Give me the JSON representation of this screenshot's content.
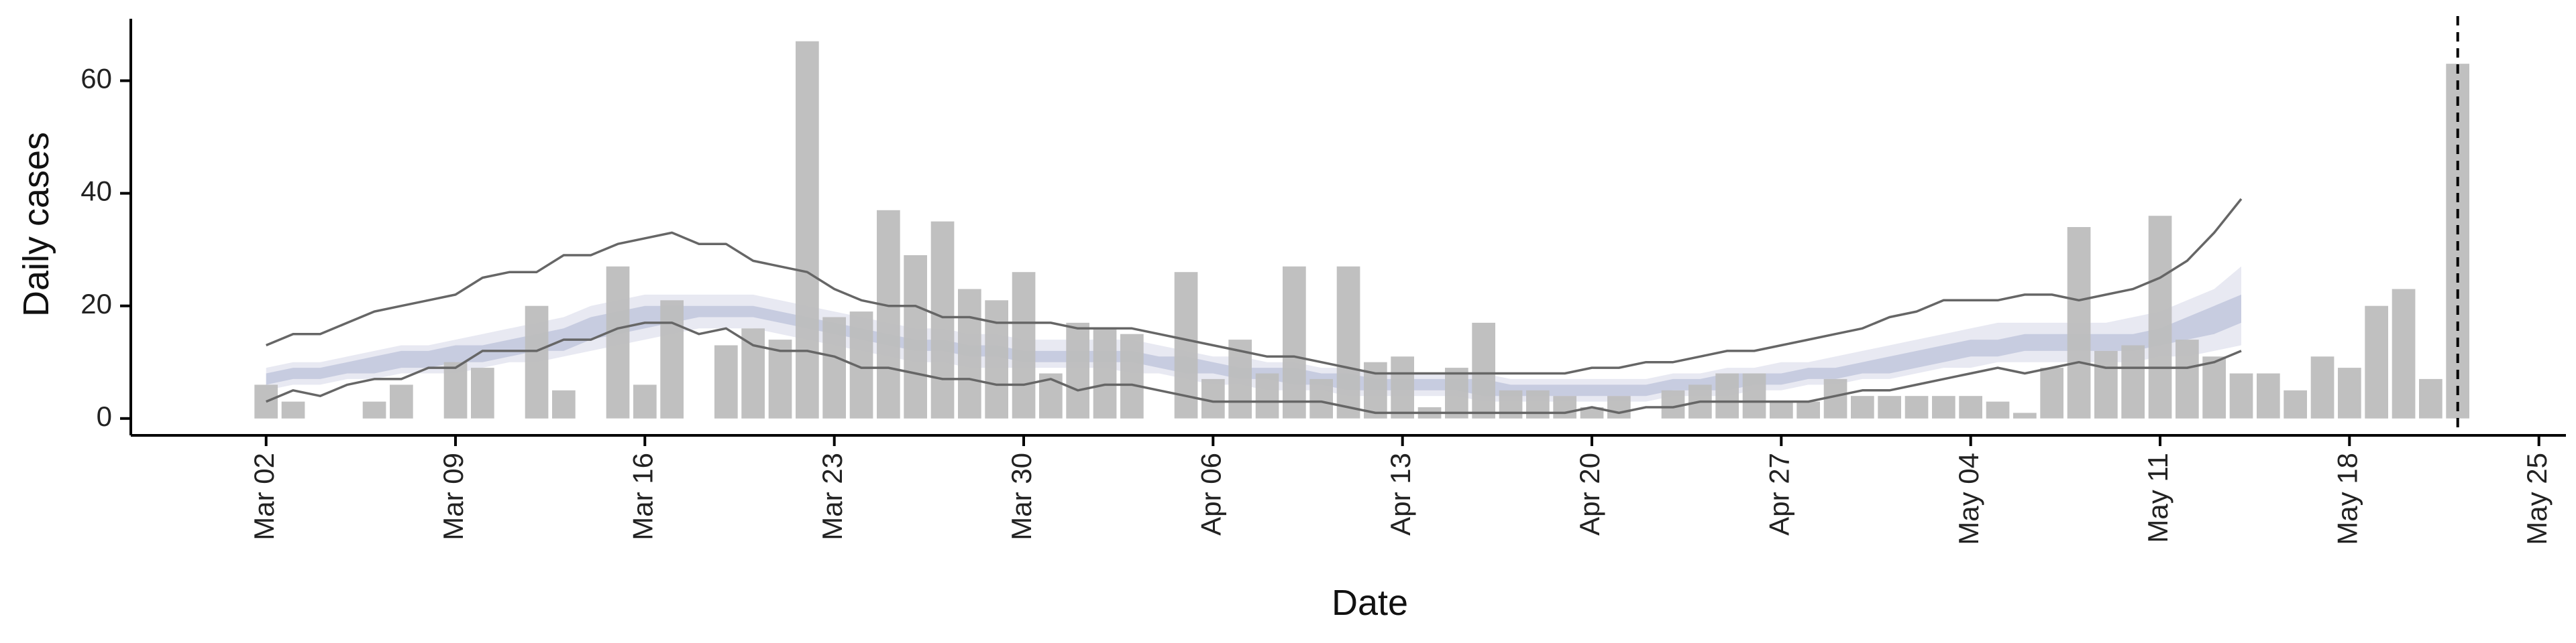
{
  "chart_data": {
    "type": "bar",
    "xlabel": "Date",
    "ylabel": "Daily cases",
    "x_start": "2020-03-02",
    "x_end": "2020-05-22",
    "xlim": [
      "2020-02-26",
      "2020-05-26"
    ],
    "ylim": [
      -3,
      71
    ],
    "y_ticks": [
      0,
      20,
      40,
      60
    ],
    "x_ticks": [
      {
        "date": "2020-03-02",
        "label": "Mar 02"
      },
      {
        "date": "2020-03-09",
        "label": "Mar 09"
      },
      {
        "date": "2020-03-16",
        "label": "Mar 16"
      },
      {
        "date": "2020-03-23",
        "label": "Mar 23"
      },
      {
        "date": "2020-03-30",
        "label": "Mar 30"
      },
      {
        "date": "2020-04-06",
        "label": "Apr 06"
      },
      {
        "date": "2020-04-13",
        "label": "Apr 13"
      },
      {
        "date": "2020-04-20",
        "label": "Apr 20"
      },
      {
        "date": "2020-04-27",
        "label": "Apr 27"
      },
      {
        "date": "2020-05-04",
        "label": "May 04"
      },
      {
        "date": "2020-05-11",
        "label": "May 11"
      },
      {
        "date": "2020-05-18",
        "label": "May 18"
      },
      {
        "date": "2020-05-25",
        "label": "May 25"
      }
    ],
    "bars": {
      "color": "#bdbdbd",
      "values": [
        6,
        3,
        0,
        0,
        3,
        6,
        0,
        10,
        9,
        0,
        20,
        5,
        0,
        27,
        6,
        21,
        0,
        13,
        16,
        14,
        67,
        18,
        19,
        37,
        29,
        35,
        23,
        21,
        26,
        8,
        17,
        16,
        15,
        0,
        26,
        7,
        14,
        8,
        27,
        7,
        27,
        10,
        11,
        2,
        9,
        17,
        5,
        5,
        4,
        2,
        4,
        0,
        5,
        6,
        8,
        8,
        3,
        3,
        7,
        4,
        4,
        4,
        4,
        4,
        3,
        1,
        9,
        34,
        12,
        13,
        36,
        14,
        11,
        8,
        8,
        5,
        11,
        9,
        20,
        23,
        7,
        63
      ]
    },
    "vline": {
      "date": "2020-05-22",
      "style": "dashed",
      "color": "#000000"
    },
    "band_outer": {
      "color": "#e8e9f2",
      "start": "2020-03-02",
      "upper": [
        9,
        10,
        10,
        11,
        12,
        13,
        13,
        14,
        15,
        16,
        17,
        18,
        20,
        21,
        22,
        22,
        22,
        22,
        22,
        21,
        20,
        19,
        18,
        17,
        16,
        16,
        15,
        15,
        14,
        14,
        14,
        14,
        14,
        13,
        12,
        11,
        11,
        10,
        10,
        9,
        9,
        8,
        8,
        8,
        8,
        8,
        7,
        7,
        7,
        7,
        7,
        7,
        8,
        8,
        9,
        9,
        10,
        10,
        11,
        12,
        13,
        14,
        15,
        16,
        17,
        17,
        17,
        17,
        17,
        18,
        19,
        21,
        23,
        27
      ],
      "lower": [
        5,
        6,
        6,
        7,
        7,
        8,
        8,
        8,
        9,
        10,
        10,
        11,
        12,
        13,
        14,
        15,
        16,
        16,
        16,
        15,
        14,
        13,
        12,
        11,
        10,
        10,
        9,
        9,
        9,
        9,
        9,
        9,
        8,
        8,
        7,
        6,
        6,
        5,
        5,
        5,
        4,
        4,
        4,
        4,
        4,
        3,
        3,
        3,
        3,
        3,
        3,
        3,
        4,
        4,
        4,
        5,
        5,
        6,
        6,
        7,
        7,
        8,
        9,
        9,
        10,
        10,
        10,
        10,
        10,
        10,
        11,
        11,
        12,
        13
      ]
    },
    "band_inner": {
      "color": "#c7cce0",
      "start": "2020-03-02",
      "upper": [
        8,
        9,
        9,
        10,
        11,
        12,
        12,
        13,
        13,
        14,
        15,
        16,
        18,
        19,
        20,
        20,
        20,
        20,
        20,
        19,
        18,
        17,
        16,
        15,
        14,
        14,
        13,
        13,
        12,
        12,
        12,
        12,
        12,
        11,
        11,
        10,
        9,
        9,
        9,
        8,
        8,
        7,
        7,
        7,
        7,
        7,
        6,
        6,
        6,
        6,
        6,
        6,
        7,
        7,
        8,
        8,
        8,
        9,
        9,
        10,
        11,
        12,
        13,
        14,
        14,
        15,
        15,
        15,
        15,
        15,
        16,
        18,
        20,
        22
      ],
      "lower": [
        6,
        7,
        7,
        8,
        8,
        9,
        9,
        10,
        10,
        11,
        12,
        12,
        14,
        15,
        16,
        17,
        18,
        18,
        18,
        17,
        16,
        15,
        14,
        13,
        12,
        12,
        11,
        11,
        10,
        10,
        10,
        10,
        10,
        9,
        8,
        8,
        7,
        7,
        6,
        6,
        5,
        5,
        5,
        5,
        5,
        4,
        4,
        4,
        4,
        4,
        4,
        4,
        5,
        5,
        5,
        6,
        6,
        7,
        7,
        8,
        8,
        9,
        10,
        11,
        11,
        12,
        12,
        12,
        12,
        12,
        13,
        14,
        15,
        17
      ]
    },
    "ci_upper_line": {
      "color": "#666666",
      "start": "2020-03-02",
      "values": [
        13,
        15,
        15,
        17,
        19,
        20,
        21,
        22,
        25,
        26,
        26,
        29,
        29,
        31,
        32,
        33,
        31,
        31,
        28,
        27,
        26,
        23,
        21,
        20,
        20,
        18,
        18,
        17,
        17,
        17,
        16,
        16,
        16,
        15,
        14,
        13,
        12,
        11,
        11,
        10,
        9,
        8,
        8,
        8,
        8,
        8,
        8,
        8,
        8,
        9,
        9,
        10,
        10,
        11,
        12,
        12,
        13,
        14,
        15,
        16,
        18,
        19,
        21,
        21,
        21,
        22,
        22,
        21,
        22,
        23,
        25,
        28,
        33,
        39
      ]
    },
    "ci_lower_line": {
      "color": "#666666",
      "start": "2020-03-02",
      "values": [
        3,
        5,
        4,
        6,
        7,
        7,
        9,
        9,
        12,
        12,
        12,
        14,
        14,
        16,
        17,
        17,
        15,
        16,
        13,
        12,
        12,
        11,
        9,
        9,
        8,
        7,
        7,
        6,
        6,
        7,
        5,
        6,
        6,
        5,
        4,
        3,
        3,
        3,
        3,
        3,
        2,
        1,
        1,
        1,
        1,
        1,
        1,
        1,
        1,
        2,
        1,
        2,
        2,
        3,
        3,
        3,
        3,
        3,
        4,
        5,
        5,
        6,
        7,
        8,
        9,
        8,
        9,
        10,
        9,
        9,
        9,
        9,
        10,
        12
      ]
    }
  }
}
